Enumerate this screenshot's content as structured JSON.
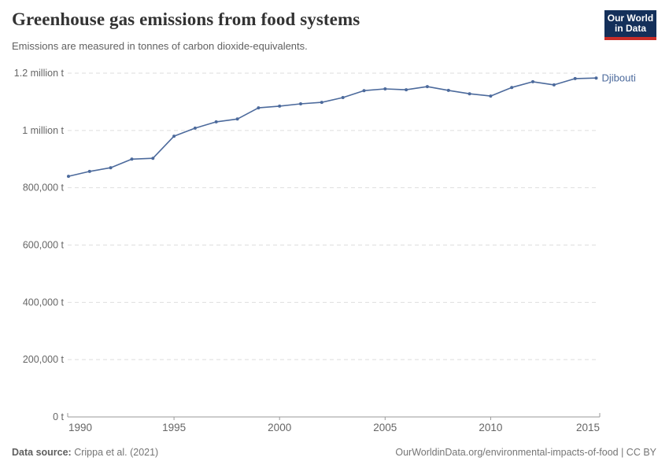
{
  "header": {
    "title": "Greenhouse gas emissions from food systems",
    "subtitle": "Emissions are measured in tonnes of carbon dioxide-equivalents.",
    "logo": {
      "line1": "Our World",
      "line2": "in Data",
      "bg_color": "#14305A",
      "bar_color": "#C82D28"
    }
  },
  "chart_data": {
    "type": "line",
    "title": "Greenhouse gas emissions from food systems",
    "unit": "tonnes of carbon dioxide-equivalents",
    "entity": "Djibouti",
    "line_color": "#4C6A9C",
    "grid_color": "#dedede",
    "axis_color": "#999999",
    "tick_text_color": "#666666",
    "grid": "horizontal-dashed",
    "legend_position": "end-of-line",
    "xlabel": "",
    "ylabel": "",
    "xlim": [
      1990,
      2015
    ],
    "ylim": [
      0,
      1200000
    ],
    "x": [
      1990,
      1991,
      1992,
      1993,
      1994,
      1995,
      1996,
      1997,
      1998,
      1999,
      2000,
      2001,
      2002,
      2003,
      2004,
      2005,
      2006,
      2007,
      2008,
      2009,
      2010,
      2011,
      2012,
      2013,
      2014,
      2015
    ],
    "series": [
      {
        "name": "Djibouti",
        "values": [
          840000,
          857000,
          870000,
          900000,
          903000,
          980000,
          1008000,
          1030000,
          1040000,
          1079000,
          1085000,
          1093000,
          1098000,
          1115000,
          1139000,
          1145000,
          1142000,
          1153000,
          1140000,
          1128000,
          1120000,
          1150000,
          1170000,
          1159000,
          1181000,
          1183000
        ]
      }
    ],
    "yticks": [
      {
        "value": 0,
        "label": "0 t"
      },
      {
        "value": 200000,
        "label": "200,000 t"
      },
      {
        "value": 400000,
        "label": "400,000 t"
      },
      {
        "value": 600000,
        "label": "600,000 t"
      },
      {
        "value": 800000,
        "label": "800,000 t"
      },
      {
        "value": 1000000,
        "label": "1 million t"
      },
      {
        "value": 1200000,
        "label": "1.2 million t"
      }
    ],
    "xticks": [
      {
        "value": 1990,
        "label": "1990"
      },
      {
        "value": 1995,
        "label": "1995"
      },
      {
        "value": 2000,
        "label": "2000"
      },
      {
        "value": 2005,
        "label": "2005"
      },
      {
        "value": 2010,
        "label": "2010"
      },
      {
        "value": 2015,
        "label": "2015"
      }
    ]
  },
  "footer": {
    "source_label": "Data source:",
    "source_value": "Crippa et al. (2021)",
    "url_text": "OurWorldinData.org/environmental-impacts-of-food | CC BY"
  }
}
